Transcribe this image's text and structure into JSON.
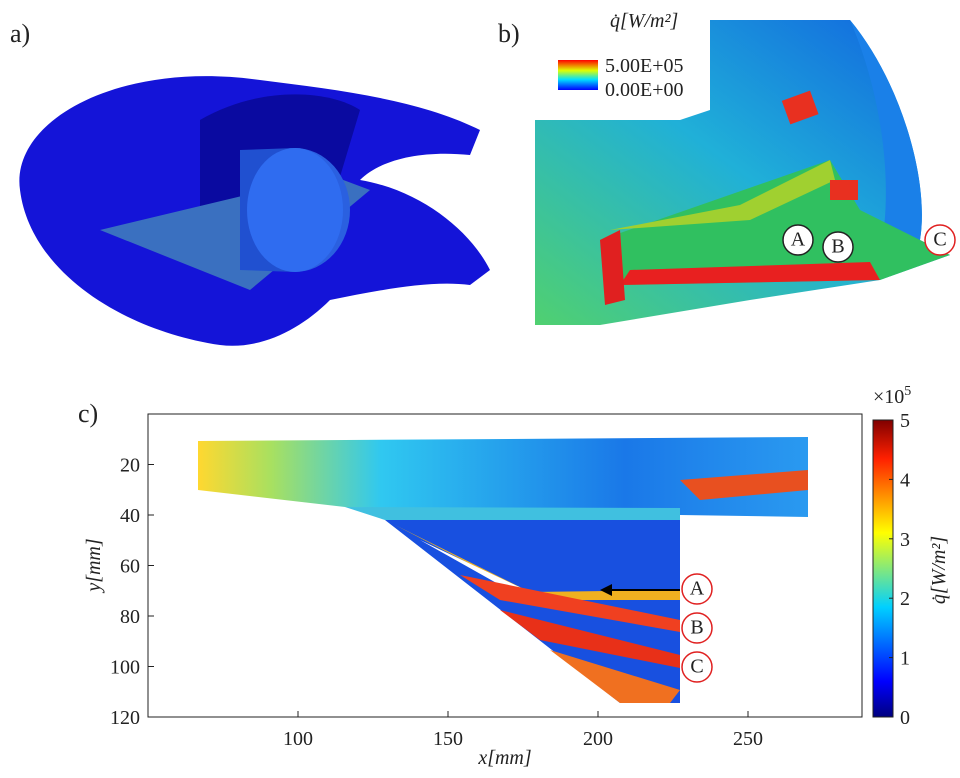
{
  "panels": {
    "a": {
      "label": "a)"
    },
    "b": {
      "label": "b)",
      "legend_title": "q̇[W/m²]",
      "legend_max": "5.00E+05",
      "legend_min": "0.00E+00",
      "markers": [
        "A",
        "B",
        "C"
      ]
    },
    "c": {
      "label": "c)",
      "xlabel": "x[mm]",
      "ylabel": "y[mm]",
      "xlim": [
        50,
        288
      ],
      "xticks": [
        100,
        150,
        200,
        250
      ],
      "ylim": [
        0,
        120
      ],
      "yreverse": true,
      "yticks": [
        20,
        40,
        60,
        80,
        100,
        120
      ],
      "colorbar": {
        "label": "q̇[W/m²]",
        "lim": [
          0,
          5
        ],
        "ticks": [
          0,
          1,
          2,
          3,
          4,
          5
        ],
        "multiplier": "×10",
        "exponent": "5"
      },
      "markers": [
        "A",
        "B",
        "C"
      ]
    }
  }
}
